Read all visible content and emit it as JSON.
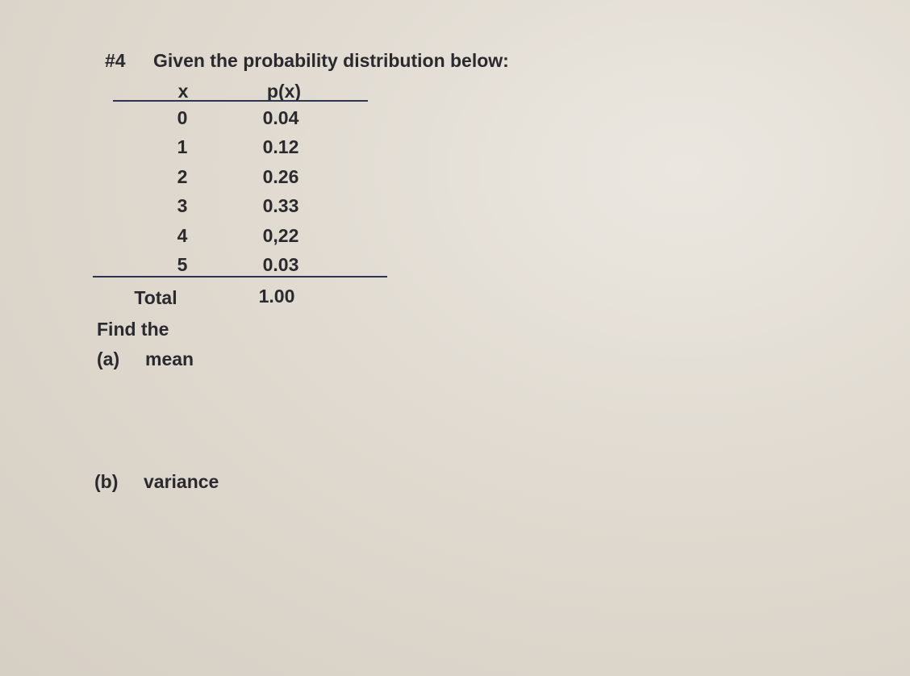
{
  "problem": {
    "number": "#4",
    "prompt": "Given the probability distribution below:"
  },
  "table": {
    "header": [
      "x",
      "p(x)"
    ],
    "rows": [
      [
        "0",
        "0.04"
      ],
      [
        "1",
        "0.12"
      ],
      [
        "2",
        "0.26"
      ],
      [
        "3",
        "0.33"
      ],
      [
        "4",
        "0,22"
      ],
      [
        "5",
        "0.03"
      ]
    ],
    "total": [
      "Total",
      "1.00"
    ]
  },
  "instruction": "Find the",
  "parts": [
    {
      "label": "(a)",
      "text": "mean"
    },
    {
      "label": "(b)",
      "text": "variance"
    }
  ]
}
